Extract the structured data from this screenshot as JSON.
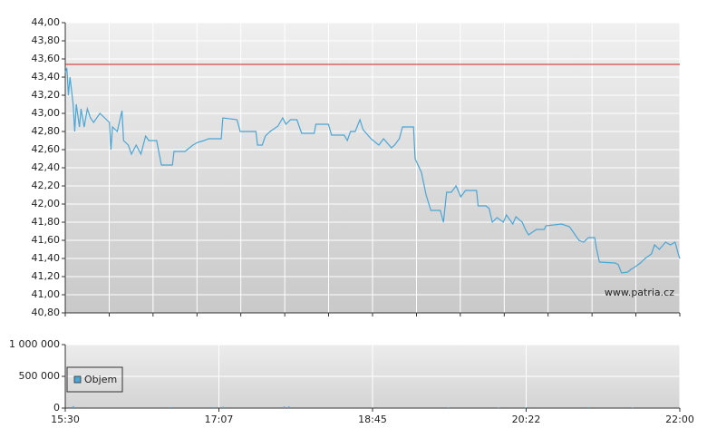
{
  "chart_data": [
    {
      "type": "line",
      "x": [
        930,
        931,
        932,
        933,
        935,
        936,
        937,
        939,
        940,
        942,
        944,
        946,
        948,
        952,
        955,
        958,
        959,
        960,
        963,
        966,
        967,
        970,
        972,
        975,
        978,
        981,
        983,
        988,
        991,
        998,
        999,
        1006,
        1011,
        1014,
        1018,
        1021,
        1029,
        1030,
        1039,
        1041,
        1051,
        1052,
        1055,
        1057,
        1060,
        1065,
        1068,
        1070,
        1073,
        1077,
        1080,
        1088,
        1089,
        1097,
        1099,
        1107,
        1109,
        1111,
        1114,
        1117,
        1119,
        1124,
        1129,
        1132,
        1137,
        1139,
        1142,
        1144,
        1151,
        1152,
        1156,
        1159,
        1162,
        1168,
        1170,
        1172,
        1175,
        1178,
        1181,
        1184,
        1191,
        1192,
        1197,
        1199,
        1201,
        1204,
        1208,
        1210,
        1214,
        1216,
        1220,
        1222,
        1224,
        1229,
        1234,
        1235,
        1245,
        1250,
        1252,
        1256,
        1259,
        1262,
        1266,
        1267,
        1269,
        1279,
        1281,
        1283,
        1287,
        1289,
        1291,
        1295,
        1298,
        1302,
        1304,
        1307,
        1311,
        1314,
        1317,
        1319,
        1320
      ],
      "values": [
        43.45,
        43.5,
        43.2,
        43.4,
        43.1,
        42.8,
        43.1,
        42.85,
        43.05,
        42.85,
        43.05,
        42.95,
        42.9,
        43.0,
        42.95,
        42.9,
        42.6,
        42.85,
        42.8,
        43.03,
        42.7,
        42.65,
        42.55,
        42.65,
        42.55,
        42.75,
        42.7,
        42.7,
        42.43,
        42.43,
        42.58,
        42.58,
        42.65,
        42.68,
        42.7,
        42.72,
        42.72,
        42.95,
        42.93,
        42.8,
        42.8,
        42.65,
        42.65,
        42.75,
        42.8,
        42.86,
        42.95,
        42.88,
        42.93,
        42.93,
        42.78,
        42.78,
        42.88,
        42.88,
        42.76,
        42.76,
        42.7,
        42.8,
        42.8,
        42.93,
        42.82,
        42.72,
        42.65,
        42.72,
        42.62,
        42.65,
        42.72,
        42.85,
        42.85,
        42.5,
        42.35,
        42.1,
        41.93,
        41.93,
        41.8,
        42.13,
        42.13,
        42.2,
        42.08,
        42.15,
        42.15,
        41.98,
        41.98,
        41.95,
        41.8,
        41.85,
        41.8,
        41.88,
        41.78,
        41.86,
        41.8,
        41.72,
        41.66,
        41.72,
        41.72,
        41.76,
        41.78,
        41.75,
        41.7,
        41.6,
        41.58,
        41.63,
        41.63,
        41.52,
        41.36,
        41.35,
        41.33,
        41.24,
        41.25,
        41.28,
        41.3,
        41.35,
        41.4,
        41.45,
        41.55,
        41.5,
        41.58,
        41.55,
        41.58,
        41.45,
        41.4
      ],
      "color": "#4aa6d6",
      "xlim": [
        930,
        1320
      ],
      "xticks": [
        930,
        957.9,
        985.7,
        1013.6,
        1041.4,
        1069.3,
        1097.1,
        1125,
        1152.9,
        1180.7,
        1208.6,
        1236.4,
        1264.3,
        1292.1,
        1320
      ],
      "ylim": [
        40.8,
        44
      ],
      "yticks": [
        {
          "value": 40.8,
          "label": "40,80"
        },
        {
          "value": 41,
          "label": "41,00"
        },
        {
          "value": 41.2,
          "label": "41,20"
        },
        {
          "value": 41.4,
          "label": "41,40"
        },
        {
          "value": 41.6,
          "label": "41,60"
        },
        {
          "value": 41.8,
          "label": "41,80"
        },
        {
          "value": 42,
          "label": "42,00"
        },
        {
          "value": 42.2,
          "label": "42,20"
        },
        {
          "value": 42.4,
          "label": "42,40"
        },
        {
          "value": 42.6,
          "label": "42,60"
        },
        {
          "value": 42.8,
          "label": "42,80"
        },
        {
          "value": 43,
          "label": "43,00"
        },
        {
          "value": 43.2,
          "label": "43,20"
        },
        {
          "value": 43.4,
          "label": "43,40"
        },
        {
          "value": 43.6,
          "label": "43,60"
        },
        {
          "value": 43.8,
          "label": "43,80"
        },
        {
          "value": 44,
          "label": "44,00"
        }
      ],
      "grid": true,
      "reference_line": {
        "value": 43.54,
        "color": "#cc2222"
      },
      "watermark": "www.patria.cz"
    },
    {
      "type": "bar",
      "x": [
        935,
        997,
        1024,
        1030,
        1069,
        1072,
        1173,
        1205,
        1222,
        1262,
        1290
      ],
      "series": [
        {
          "name": "Objem",
          "color": "#4aa6d6",
          "values": [
            30000,
            15000,
            15000,
            20000,
            25000,
            25000,
            12000,
            10000,
            12000,
            15000,
            10000
          ]
        }
      ],
      "xlim": [
        930,
        1320
      ],
      "xticks": [
        {
          "value": 930,
          "label": "15:30"
        },
        {
          "value": 1027.5,
          "label": "17:07"
        },
        {
          "value": 1125,
          "label": "18:45"
        },
        {
          "value": 1222.5,
          "label": "20:22"
        },
        {
          "value": 1320,
          "label": "22:00"
        }
      ],
      "ylim": [
        0,
        1000000
      ],
      "yticks": [
        0,
        {
          "value": 500000,
          "label": "500 000"
        },
        {
          "value": 1000000,
          "label": "1 000 000"
        }
      ],
      "grid": true,
      "legend": "upper left"
    }
  ]
}
